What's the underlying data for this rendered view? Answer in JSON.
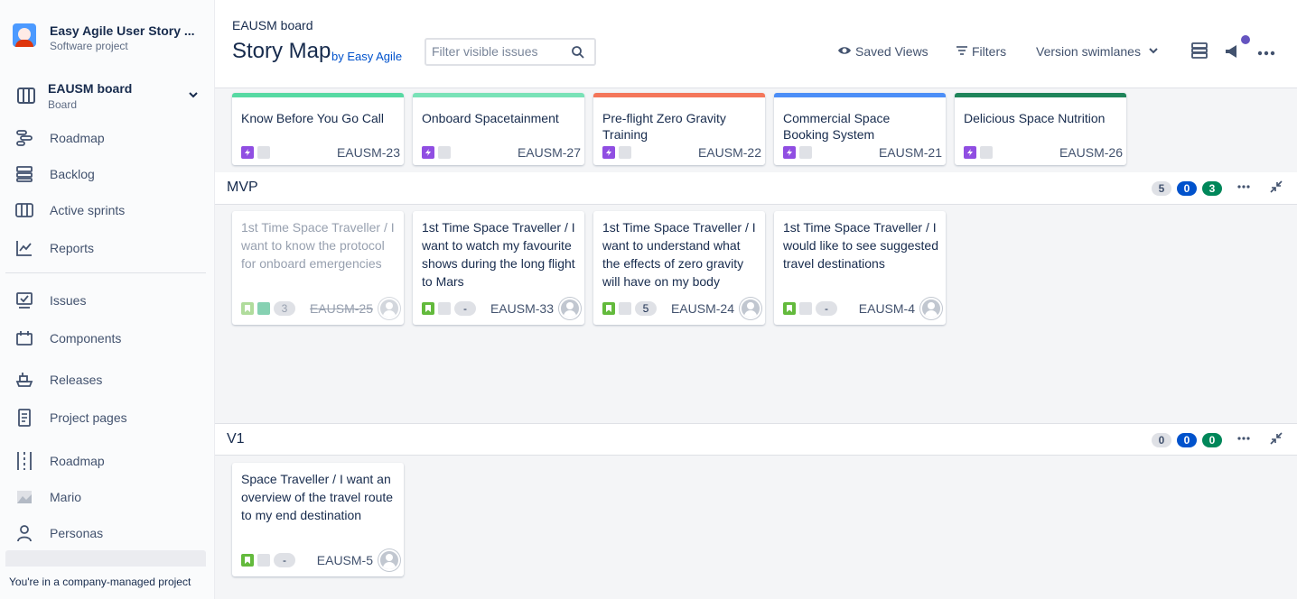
{
  "sidebar": {
    "project_name": "Easy Agile User Story ...",
    "project_type": "Software project",
    "board_name": "EAUSM board",
    "board_type": "Board",
    "items": [
      {
        "label": "Roadmap",
        "icon": "roadmap-icon"
      },
      {
        "label": "Backlog",
        "icon": "backlog-icon"
      },
      {
        "label": "Active sprints",
        "icon": "sprint-board-icon"
      },
      {
        "label": "Reports",
        "icon": "reports-icon"
      },
      {
        "label": "Issues",
        "icon": "issues-icon"
      },
      {
        "label": "Components",
        "icon": "components-icon"
      },
      {
        "label": "Releases",
        "icon": "releases-icon"
      },
      {
        "label": "Project pages",
        "icon": "pages-icon"
      },
      {
        "label": "Roadmap",
        "icon": "roadmap-plugin-icon"
      },
      {
        "label": "Mario",
        "icon": "mario-image-icon"
      },
      {
        "label": "Personas",
        "icon": "person-icon"
      }
    ],
    "footer_note": "You're in a company-managed project"
  },
  "header": {
    "breadcrumb": "EAUSM board",
    "title": "Story Map",
    "byline": "by Easy Agile",
    "filter_placeholder": "Filter visible issues",
    "saved_views": "Saved Views",
    "filters": "Filters",
    "swimlanes": "Version swimlanes"
  },
  "epics": [
    {
      "title": "Know Before You Go Call",
      "key": "EAUSM-23",
      "color": "#57d9a3"
    },
    {
      "title": "Onboard Spacetainment",
      "key": "EAUSM-27",
      "color": "#79e2b7"
    },
    {
      "title": "Pre-flight Zero Gravity Training",
      "key": "EAUSM-22",
      "color": "#f4765a"
    },
    {
      "title": "Commercial Space Booking System",
      "key": "EAUSM-21",
      "color": "#4c8ef7"
    },
    {
      "title": "Delicious Space Nutrition",
      "key": "EAUSM-26",
      "color": "#1f845a"
    }
  ],
  "swimlanes": [
    {
      "name": "MVP",
      "counts": {
        "todo": "5",
        "in_progress": "0",
        "done": "3"
      },
      "stories": [
        {
          "text": "1st Time Space Traveller / I want to know the protocol for onboard emergencies",
          "key": "EAUSM-25",
          "estimate": "3",
          "done": true
        },
        {
          "text": "1st Time Space Traveller / I want to watch my favourite shows during the long flight to Mars",
          "key": "EAUSM-33",
          "estimate": "-",
          "done": false
        },
        {
          "text": "1st Time Space Traveller / I want to understand what the effects of zero gravity will have on my body",
          "key": "EAUSM-24",
          "estimate": "5",
          "done": false
        },
        {
          "text": "1st Time Space Traveller / I would like to see suggested travel destinations",
          "key": "EAUSM-4",
          "estimate": "-",
          "done": false
        }
      ]
    },
    {
      "name": "V1",
      "counts": {
        "todo": "0",
        "in_progress": "0",
        "done": "0"
      },
      "stories": [
        {
          "text": "Space Traveller / I want an overview of the travel route to my end destination",
          "key": "EAUSM-5",
          "estimate": "-",
          "done": false
        }
      ]
    }
  ],
  "colors": {
    "accent": "#0052cc",
    "epic_purple": "#904ee2",
    "story_green": "#63ba3c",
    "done_green": "#00875a",
    "notification_dot": "#6554c0"
  }
}
